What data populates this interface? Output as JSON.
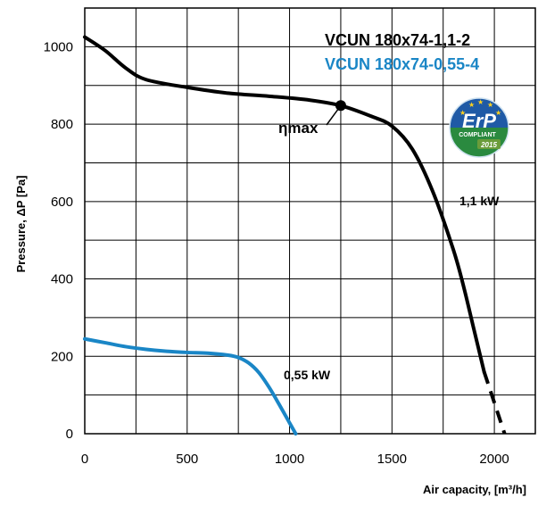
{
  "chart_data": {
    "type": "line",
    "xlabel": "Air capacity, [m³/h]",
    "ylabel": "Pressure, ΔP [Pa]",
    "xlim": [
      0,
      2200
    ],
    "ylim": [
      0,
      1100
    ],
    "x_ticks": [
      0,
      500,
      1000,
      1500,
      2000
    ],
    "y_ticks": [
      0,
      200,
      400,
      600,
      800,
      1000
    ],
    "x_tick_labels": [
      "0",
      "500",
      "1000",
      "1500",
      "2000"
    ],
    "y_tick_labels": [
      "0",
      "200",
      "400",
      "600",
      "800",
      "1000"
    ],
    "grid": true,
    "series": [
      {
        "name": "VCUN 180x74-1,1-2",
        "color": "#000000",
        "x": [
          0,
          100,
          200,
          300,
          500,
          700,
          900,
          1100,
          1250,
          1400,
          1500,
          1600,
          1700,
          1800,
          1850,
          1900,
          1950
        ],
        "y": [
          1025,
          990,
          945,
          915,
          895,
          880,
          872,
          862,
          848,
          820,
          795,
          735,
          625,
          475,
          380,
          270,
          160
        ],
        "dashed_x": [
          1950,
          2000,
          2050
        ],
        "dashed_y": [
          160,
          80,
          0
        ]
      },
      {
        "name": "VCUN 180x74-0,55-4",
        "color": "#1a86c6",
        "x": [
          0,
          100,
          200,
          300,
          400,
          500,
          600,
          700,
          750,
          800,
          850,
          900,
          950,
          1000,
          1030
        ],
        "y": [
          245,
          235,
          225,
          218,
          213,
          210,
          208,
          203,
          197,
          183,
          158,
          120,
          75,
          28,
          0
        ]
      }
    ],
    "annotations": {
      "eta_label": "ηmax",
      "eta_point": [
        1250,
        848
      ],
      "power_1": "1,1 kW",
      "power_2": "0,55 kW"
    },
    "badge": {
      "main": "ErP",
      "sub": "COMPLIANT",
      "year": "2015"
    }
  }
}
